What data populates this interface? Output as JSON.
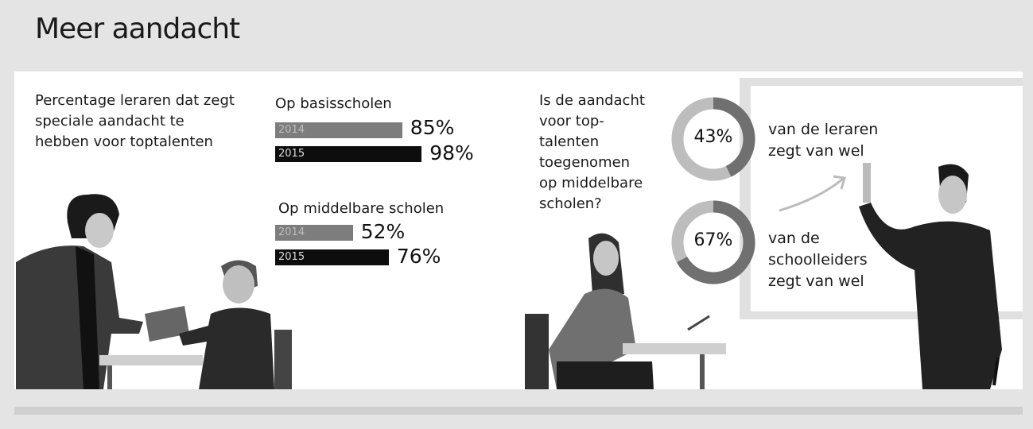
{
  "title": "Meer aandacht",
  "left_intro": [
    "Percentage leraren dat zegt",
    "speciale aandacht te",
    "hebben voor toptalenten"
  ],
  "chart_data": [
    {
      "type": "bar",
      "title": "Percentage leraren dat zegt speciale aandacht te hebben voor toptalenten",
      "groups": [
        {
          "name": "Op basisscholen",
          "series": [
            {
              "name": "2014",
              "value": 85,
              "label": "85%"
            },
            {
              "name": "2015",
              "value": 98,
              "label": "98%"
            }
          ]
        },
        {
          "name": "Op middelbare scholen",
          "series": [
            {
              "name": "2014",
              "value": 52,
              "label": "52%"
            },
            {
              "name": "2015",
              "value": 76,
              "label": "76%"
            }
          ]
        }
      ],
      "unit": "%"
    },
    {
      "type": "pie",
      "title": "Is de aandacht voor toptalenten toegenomen op middelbare scholen?",
      "donuts": [
        {
          "value": 43,
          "label": "43%",
          "caption": [
            "van de leraren",
            "zegt van wel"
          ]
        },
        {
          "value": 67,
          "label": "67%",
          "caption": [
            "van de",
            "schoolleiders",
            "zegt van wel"
          ]
        }
      ]
    }
  ],
  "question": [
    "Is de aandacht",
    "voor top-",
    "talenten",
    "toegenomen",
    "op middelbare",
    "scholen?"
  ],
  "colors": {
    "bar2014": "#7d7d7d",
    "bar2015": "#0d0d0d",
    "donut_fill": "#707070",
    "donut_rest": "#bdbdbd"
  }
}
